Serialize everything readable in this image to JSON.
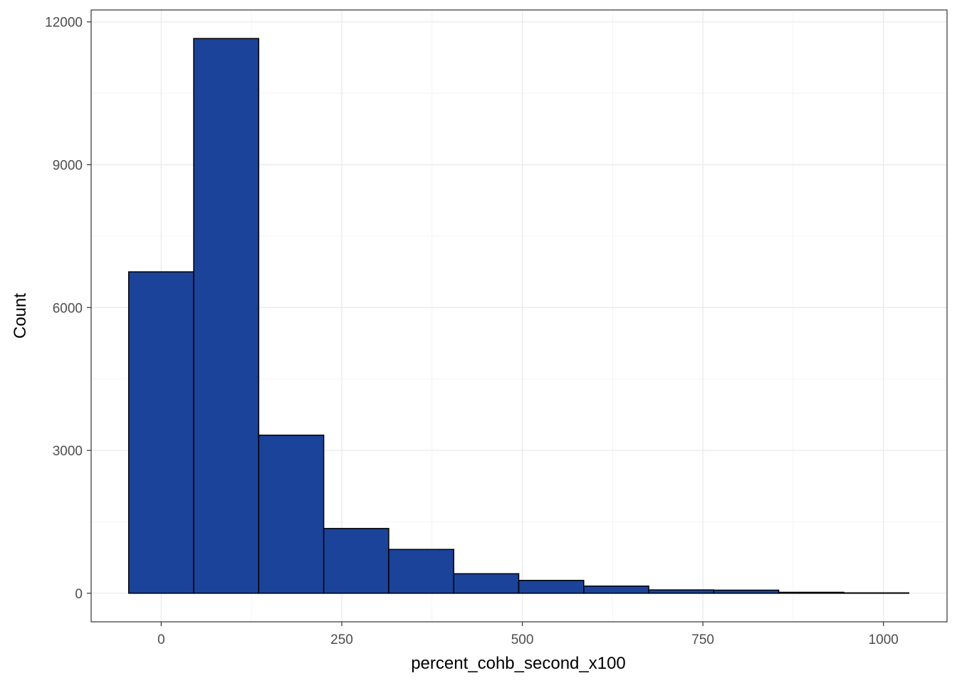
{
  "chart_data": {
    "type": "bar",
    "subtype": "histogram",
    "title": "",
    "xlabel": "percent_cohb_second_x100",
    "ylabel": "Count",
    "xlim": [
      -97,
      1088
    ],
    "ylim": [
      -600,
      12250
    ],
    "x_ticks": [
      0,
      250,
      500,
      750,
      1000
    ],
    "x_tick_labels": [
      "0",
      "250",
      "500",
      "750",
      "1000"
    ],
    "y_ticks": [
      0,
      3000,
      6000,
      9000,
      12000
    ],
    "y_tick_labels": [
      "0",
      "3000",
      "6000",
      "9000",
      "12000"
    ],
    "bin_width": 90,
    "bins": [
      {
        "x_start": -45,
        "x_end": 45,
        "count": 6750
      },
      {
        "x_start": 45,
        "x_end": 135,
        "count": 11650
      },
      {
        "x_start": 135,
        "x_end": 225,
        "count": 3320
      },
      {
        "x_start": 225,
        "x_end": 315,
        "count": 1360
      },
      {
        "x_start": 315,
        "x_end": 405,
        "count": 920
      },
      {
        "x_start": 405,
        "x_end": 495,
        "count": 410
      },
      {
        "x_start": 495,
        "x_end": 585,
        "count": 270
      },
      {
        "x_start": 585,
        "x_end": 675,
        "count": 150
      },
      {
        "x_start": 675,
        "x_end": 765,
        "count": 70
      },
      {
        "x_start": 765,
        "x_end": 855,
        "count": 65
      },
      {
        "x_start": 855,
        "x_end": 945,
        "count": 20
      },
      {
        "x_start": 945,
        "x_end": 1035,
        "count": 8
      }
    ],
    "bar_fill": "#1a4399",
    "bar_outline": "#000000",
    "grid": true,
    "legend": "none",
    "theme": "bw"
  }
}
